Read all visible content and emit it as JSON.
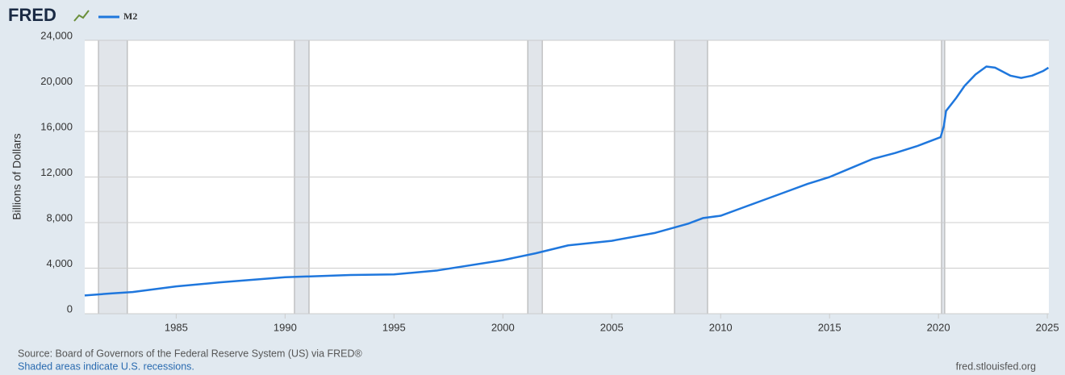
{
  "logo": "FRED",
  "chart_data": {
    "type": "line",
    "x": [
      1980.8,
      1982,
      1983,
      1985,
      1987,
      1990,
      1993,
      1995,
      1997,
      2000,
      2001.5,
      2003,
      2005,
      2007,
      2008.5,
      2009.2,
      2010,
      2011,
      2012,
      2013,
      2014,
      2015,
      2016,
      2017,
      2018,
      2019,
      2020.1,
      2020.25,
      2020.35,
      2020.8,
      2021.2,
      2021.7,
      2022.2,
      2022.6,
      2023.3,
      2023.8,
      2024.3,
      2024.8,
      2025.05
    ],
    "series": [
      {
        "name": "M2",
        "color": "#1f77dd",
        "values": [
          1600,
          1780,
          1900,
          2400,
          2750,
          3200,
          3400,
          3450,
          3800,
          4700,
          5300,
          6000,
          6400,
          7100,
          7900,
          8400,
          8600,
          9300,
          10000,
          10700,
          11400,
          12000,
          12800,
          13600,
          14100,
          14700,
          15500,
          16500,
          17800,
          18900,
          20000,
          21000,
          21700,
          21600,
          20900,
          20700,
          20900,
          21300,
          21600
        ]
      }
    ],
    "recessions": [
      [
        1981.43,
        1982.76
      ],
      [
        1990.43,
        1991.1
      ],
      [
        2001.14,
        2001.81
      ],
      [
        2007.88,
        2009.4
      ],
      [
        2020.14,
        2020.29
      ]
    ],
    "xlim": [
      1980.8,
      2025.07
    ],
    "xticks": [
      1985,
      1990,
      1995,
      2000,
      2005,
      2010,
      2015,
      2020,
      2025
    ],
    "ylim": [
      0,
      24000
    ],
    "yticks": [
      0,
      {
        "value": 4000,
        "label": "4,000"
      },
      {
        "value": 8000,
        "label": "8,000"
      },
      {
        "value": 12000,
        "label": "12,000"
      },
      {
        "value": 16000,
        "label": "16,000"
      },
      {
        "value": 20000,
        "label": "20,000"
      },
      {
        "value": 24000,
        "label": "24,000"
      }
    ],
    "ylabel": "Billions of Dollars",
    "grid": true,
    "source": "Source: Board of Governors of the Federal Reserve System (US) via FRED®",
    "note": "Shaded areas indicate U.S. recessions.",
    "credit": "fred.stlouisfed.org"
  }
}
